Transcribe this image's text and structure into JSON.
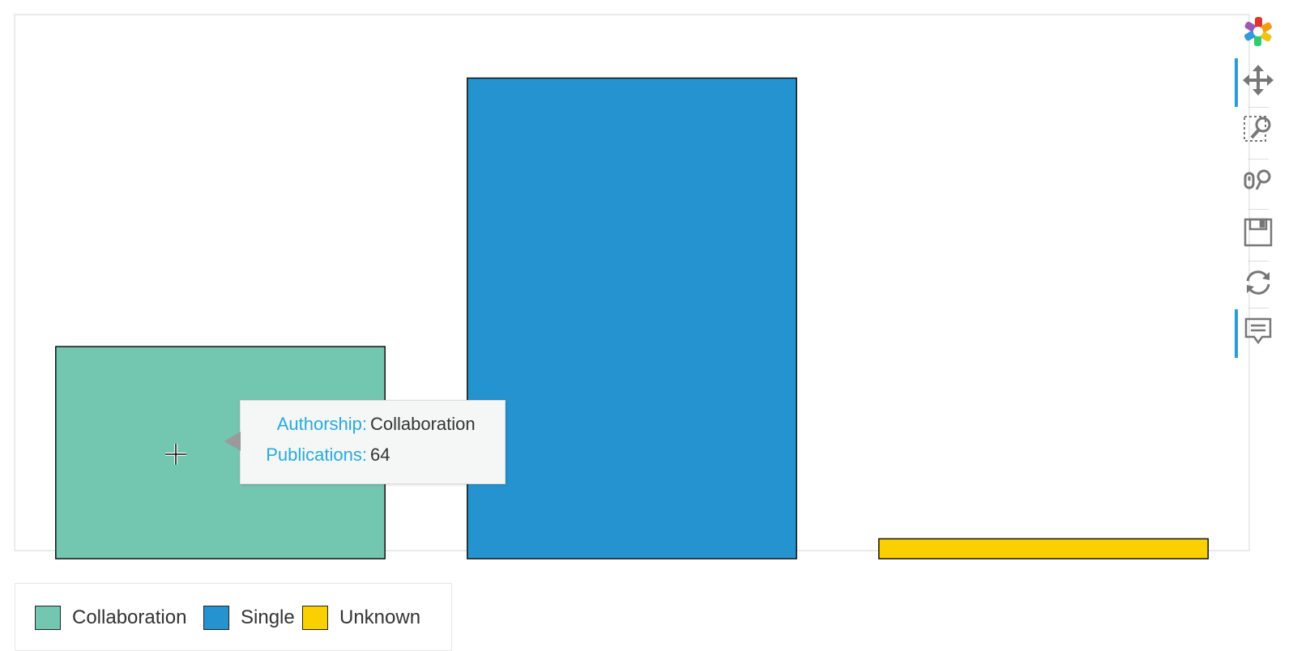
{
  "chart_data": {
    "type": "bar",
    "categories": [
      "Collaboration",
      "Single",
      "Unknown"
    ],
    "values": [
      64,
      145,
      6
    ],
    "ylim": [
      0,
      150
    ],
    "colors": [
      "#73c6b0",
      "#2693d1",
      "#fbd000"
    ],
    "grid": false,
    "legend_placement": "bottom-left",
    "legend": [
      "Collaboration",
      "Single",
      "Unknown"
    ]
  },
  "tooltip": {
    "rows": [
      {
        "label": "Authorship:",
        "value": "Collaboration"
      },
      {
        "label": "Publications:",
        "value": "64"
      }
    ]
  },
  "toolbar": {
    "tools": [
      {
        "name": "bokeh-logo-icon",
        "active": false
      },
      {
        "name": "pan-tool-icon",
        "active": true
      },
      {
        "name": "box-zoom-tool-icon",
        "active": false
      },
      {
        "name": "wheel-zoom-tool-icon",
        "active": false
      },
      {
        "name": "save-tool-icon",
        "active": false
      },
      {
        "name": "reset-tool-icon",
        "active": false
      },
      {
        "name": "hover-tool-icon",
        "active": true
      }
    ]
  }
}
